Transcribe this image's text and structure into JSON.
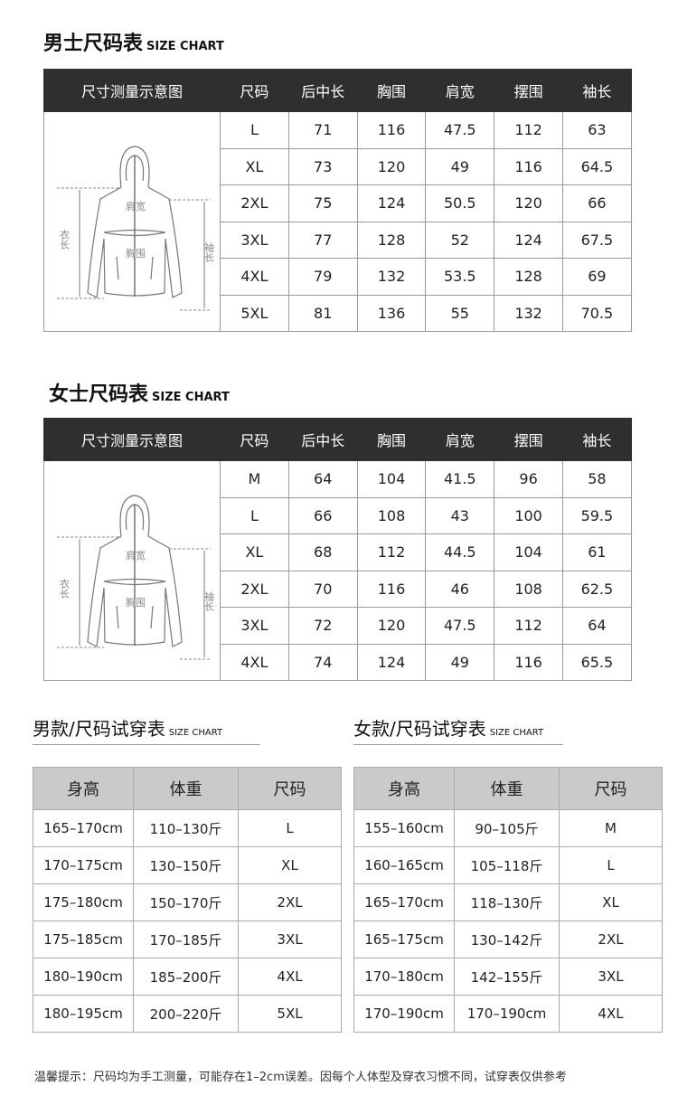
{
  "men": {
    "title": "男士尺码表",
    "title_en": "SIZE CHART",
    "headers": [
      "尺寸测量示意图",
      "尺码",
      "后中长",
      "胸围",
      "肩宽",
      "摆围",
      "袖长"
    ],
    "diagram_labels": {
      "shoulder": "肩宽",
      "chest": "胸围",
      "length": "衣长",
      "sleeve": "袖长"
    },
    "rows": [
      [
        "L",
        "71",
        "116",
        "47.5",
        "112",
        "63"
      ],
      [
        "XL",
        "73",
        "120",
        "49",
        "116",
        "64.5"
      ],
      [
        "2XL",
        "75",
        "124",
        "50.5",
        "120",
        "66"
      ],
      [
        "3XL",
        "77",
        "128",
        "52",
        "124",
        "67.5"
      ],
      [
        "4XL",
        "79",
        "132",
        "53.5",
        "128",
        "69"
      ],
      [
        "5XL",
        "81",
        "136",
        "55",
        "132",
        "70.5"
      ]
    ]
  },
  "women": {
    "title": "女士尺码表",
    "title_en": "SIZE CHART",
    "headers": [
      "尺寸测量示意图",
      "尺码",
      "后中长",
      "胸围",
      "肩宽",
      "摆围",
      "袖长"
    ],
    "diagram_labels": {
      "shoulder": "肩宽",
      "chest": "胸围",
      "length": "衣长",
      "sleeve": "袖长"
    },
    "rows": [
      [
        "M",
        "64",
        "104",
        "41.5",
        "96",
        "58"
      ],
      [
        "L",
        "66",
        "108",
        "43",
        "100",
        "59.5"
      ],
      [
        "XL",
        "68",
        "112",
        "44.5",
        "104",
        "61"
      ],
      [
        "2XL",
        "70",
        "116",
        "46",
        "108",
        "62.5"
      ],
      [
        "3XL",
        "72",
        "120",
        "47.5",
        "112",
        "64"
      ],
      [
        "4XL",
        "74",
        "124",
        "49",
        "116",
        "65.5"
      ]
    ]
  },
  "men_fit": {
    "title": "男款/尺码试穿表",
    "title_en": "SIZE CHART",
    "headers": [
      "身高",
      "体重",
      "尺码"
    ],
    "rows": [
      [
        "165–170cm",
        "110–130斤",
        "L"
      ],
      [
        "170–175cm",
        "130–150斤",
        "XL"
      ],
      [
        "175–180cm",
        "150–170斤",
        "2XL"
      ],
      [
        "175–185cm",
        "170–185斤",
        "3XL"
      ],
      [
        "180–190cm",
        "185–200斤",
        "4XL"
      ],
      [
        "180–195cm",
        "200–220斤",
        "5XL"
      ]
    ]
  },
  "women_fit": {
    "title": "女款/尺码试穿表",
    "title_en": "SIZE CHART",
    "headers": [
      "身高",
      "体重",
      "尺码"
    ],
    "rows": [
      [
        "155–160cm",
        "90–105斤",
        "M"
      ],
      [
        "160–165cm",
        "105–118斤",
        "L"
      ],
      [
        "165–170cm",
        "118–130斤",
        "XL"
      ],
      [
        "165–175cm",
        "130–142斤",
        "2XL"
      ],
      [
        "170–180cm",
        "142–155斤",
        "3XL"
      ],
      [
        "170–190cm",
        "170–190cm",
        "4XL"
      ]
    ]
  },
  "note": "温馨提示：尺码均为手工测量，可能存在1–2cm误差。因每个人体型及穿衣习惯不同，试穿表仅供参考"
}
